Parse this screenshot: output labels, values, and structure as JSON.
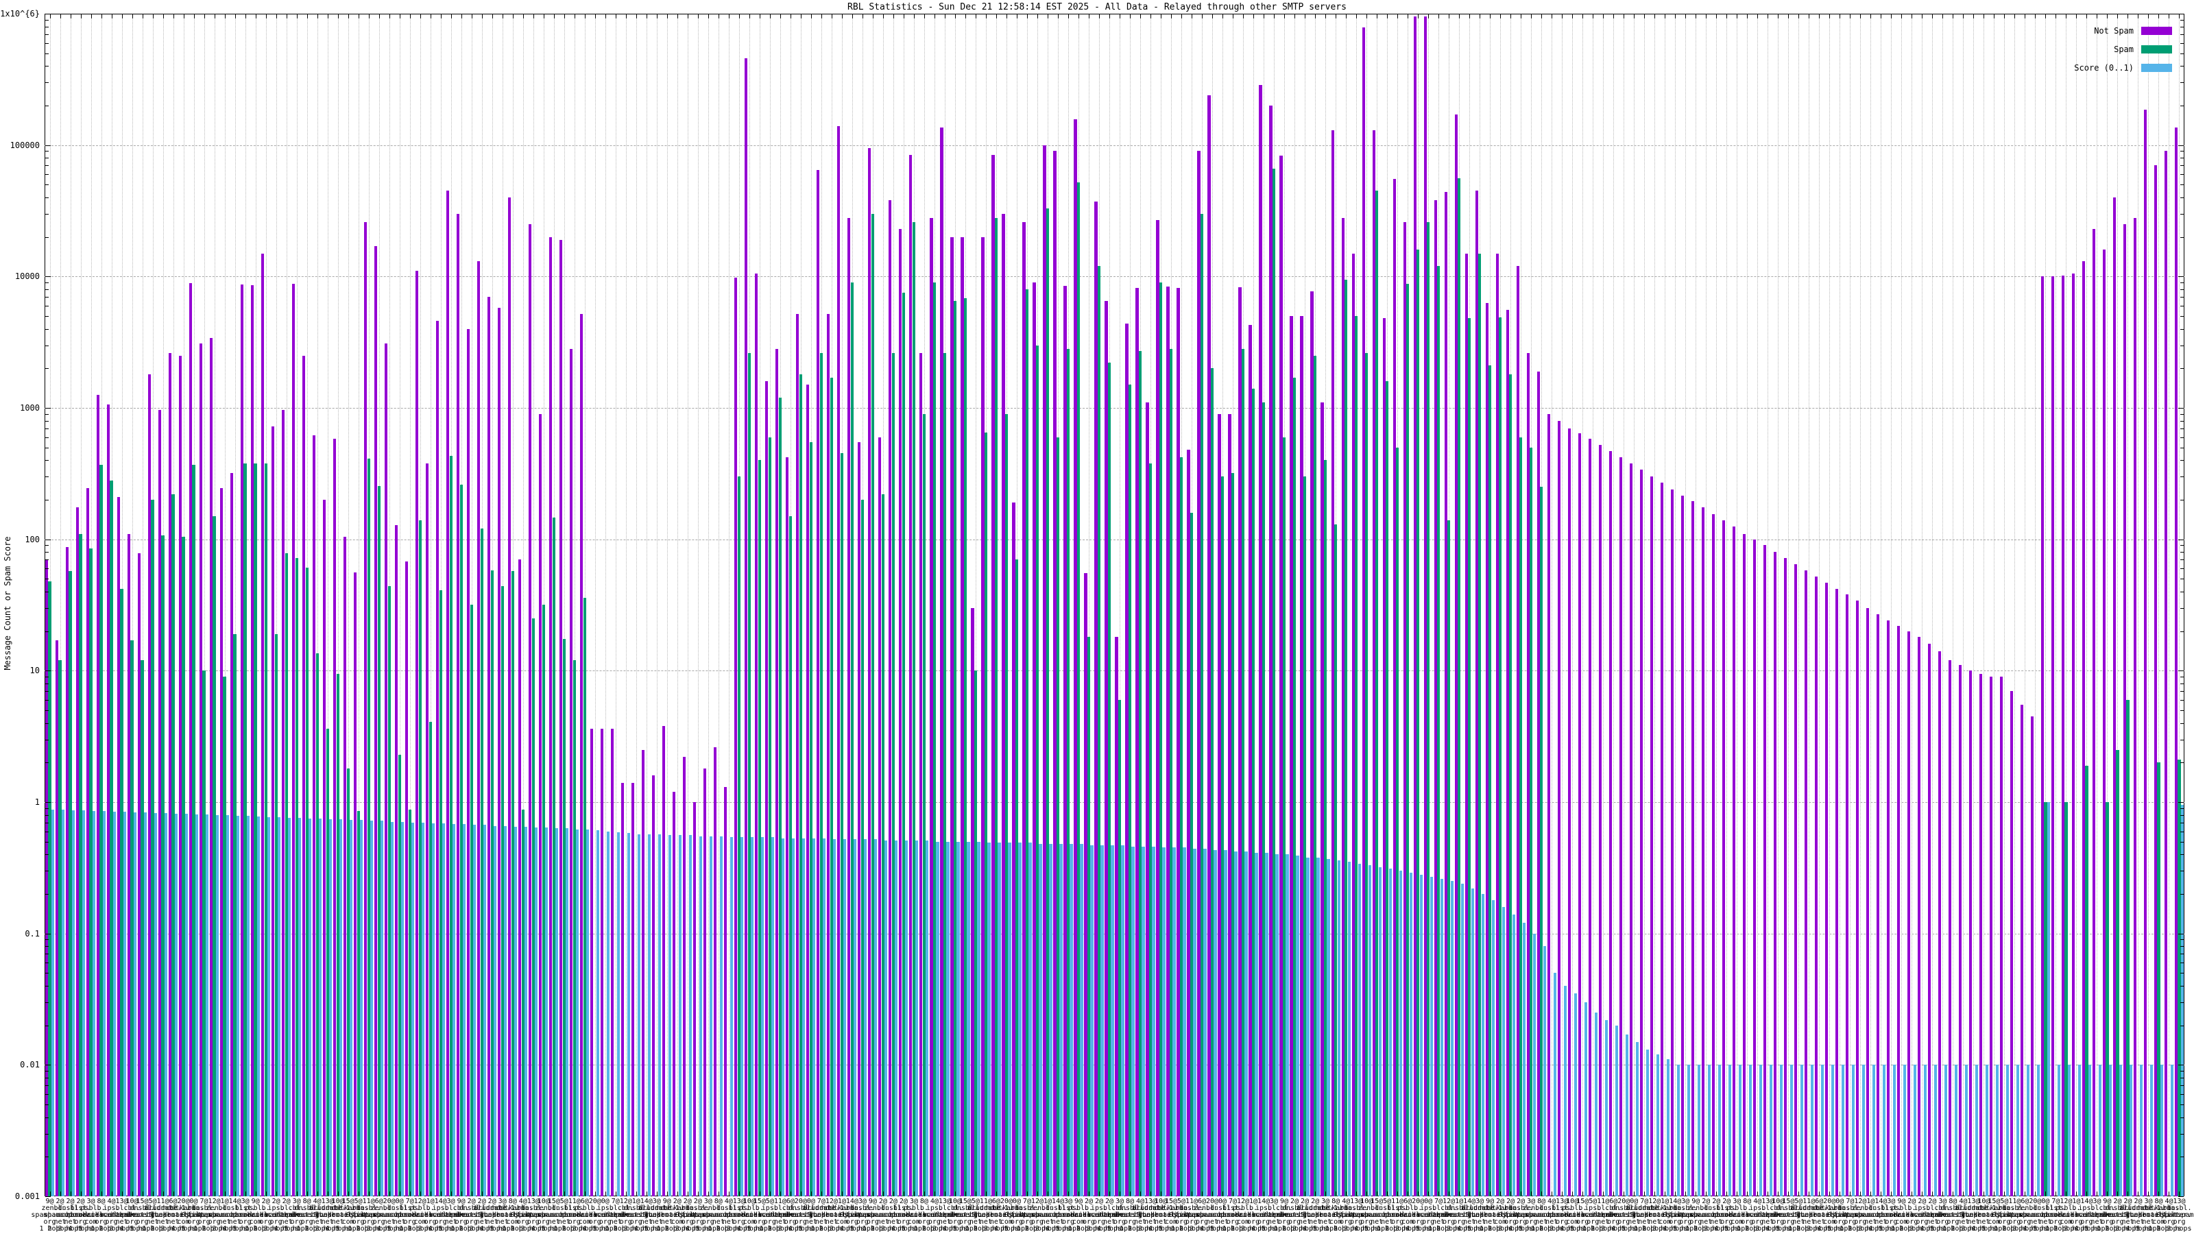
{
  "title": "RBL Statistics - Sun Dec 21 12:58:14 EST 2025 - All Data - Relayed through other SMTP servers",
  "legend": [
    {
      "label": "Not Spam",
      "color": "#9400D3"
    },
    {
      "label": "Spam",
      "color": "#009E73"
    },
    {
      "label": "Score (0..1)",
      "color": "#56B4E9"
    }
  ],
  "axes": {
    "ylabel": "Message Count or Spam Score",
    "ytick_labels": [
      "0.001",
      "0.01",
      "0.1",
      "1",
      "10",
      "100",
      "1000",
      "10000",
      "100000",
      "1x10^{6}"
    ],
    "yscale": "log",
    "ylim": [
      0.001,
      1000000
    ],
    "grid": "on"
  },
  "chart_data": {
    "type": "bar",
    "title": "RBL Statistics - Sun Dec 21 12:58:14 EST 2025 - All Data - Relayed through other SMTP servers",
    "xlabel": "",
    "ylabel": "Message Count or Spam Score",
    "yscale": "log",
    "ylim": [
      0.001,
      1000000
    ],
    "series_names": [
      "Not Spam",
      "Spam",
      "Score (0..1)"
    ],
    "labels": [
      "9@ zen.spamhaus.org 1 hop",
      "2@ bl.spamcop.net 2 hops",
      "2@ dnsbl.sorbs.net 3 hops",
      "2@ list.dnswl.org 4 hops",
      "3@ psbl.surriel.com 5 hops",
      "8@ b.barracudacentral.org 1 hop",
      "4@ ips.backscatterer.org 2 hops",
      "13@ bl.mailspike.net 3 hops",
      "10@ cbl.abuseat.org 4 hops",
      "15@ dnsbl.dronebl.org 5 hops",
      "5@ all.s5h.net 1 hop",
      "11@ truncate.gbudb.net 2 hops",
      "6@ dnsbl-1.uceprotect.net 3 hops",
      "20@ hostkarma.junkemailfilter.com 4 hops",
      "0@ bl.0spam.org 5 hops",
      "7@ dnsbl.justspam.org 1 hop",
      "12@ zen.spamhaus.org 2 hops",
      "1@ bl.spamcop.net 3 hops",
      "14@ dnsbl.sorbs.net 4 hops",
      "3@ list.dnswl.org 5 hops",
      "9@ psbl.surriel.com 1 hop",
      "2@ b.barracudacentral.org 2 hops",
      "2@ ips.backscatterer.org 3 hops",
      "2@ bl.mailspike.net 4 hops",
      "3@ cbl.abuseat.org 5 hops",
      "8@ dnsbl.dronebl.org 1 hop",
      "4@ all.s5h.net 2 hops",
      "13@ truncate.gbudb.net 3 hops",
      "10@ dnsbl-1.uceprotect.net 4 hops",
      "15@ hostkarma.junkemailfilter.com 5 hops",
      "5@ bl.0spam.org 1 hop",
      "11@ dnsbl.justspam.org 2 hops",
      "6@ zen.spamhaus.org 3 hops",
      "20@ bl.spamcop.net 4 hops",
      "0@ dnsbl.sorbs.net 5 hops",
      "7@ list.dnswl.org 1 hop",
      "12@ psbl.surriel.com 2 hops",
      "1@ b.barracudacentral.org 3 hops",
      "14@ ips.backscatterer.org 4 hops",
      "3@ bl.mailspike.net 5 hops",
      "9@ cbl.abuseat.org 1 hop",
      "2@ dnsbl.dronebl.org 2 hops",
      "2@ all.s5h.net 3 hops",
      "2@ truncate.gbudb.net 4 hops",
      "3@ dnsbl-1.uceprotect.net 5 hops",
      "8@ hostkarma.junkemailfilter.com 1 hop",
      "4@ bl.0spam.org 2 hops",
      "13@ dnsbl.justspam.org 3 hops",
      "10@ zen.spamhaus.org 4 hops",
      "15@ bl.spamcop.net 5 hops",
      "5@ dnsbl.sorbs.net 1 hop",
      "11@ list.dnswl.org 2 hops",
      "6@ psbl.surriel.com 3 hops",
      "20@ b.barracudacentral.org 4 hops",
      "0@ ips.backscatterer.org 5 hops",
      "7@ bl.mailspike.net 1 hop",
      "12@ cbl.abuseat.org 2 hops",
      "1@ dnsbl.dronebl.org 3 hops",
      "14@ all.s5h.net 4 hops",
      "3@ truncate.gbudb.net 5 hops",
      "9@ dnsbl-1.uceprotect.net 1 hop",
      "2@ hostkarma.junkemailfilter.com 2 hops",
      "2@ bl.0spam.org 3 hops",
      "2@ dnsbl.justspam.org 4 hops",
      "3@ zen.spamhaus.org 5 hops",
      "8@ bl.spamcop.net 1 hop",
      "4@ dnsbl.sorbs.net 2 hops",
      "13@ list.dnswl.org 3 hops",
      "10@ psbl.surriel.com 4 hops",
      "15@ b.barracudacentral.org 5 hops",
      "5@ ips.backscatterer.org 1 hop",
      "11@ bl.mailspike.net 2 hops",
      "6@ cbl.abuseat.org 3 hops",
      "20@ dnsbl.dronebl.org 4 hops",
      "0@ all.s5h.net 5 hops",
      "7@ truncate.gbudb.net 1 hop",
      "12@ dnsbl-1.uceprotect.net 2 hops",
      "1@ hostkarma.junkemailfilter.com 3 hops",
      "14@ bl.0spam.org 4 hops",
      "3@ dnsbl.justspam.org 5 hops",
      "9@ zen.spamhaus.org 1 hop",
      "2@ bl.spamcop.net 2 hops",
      "2@ dnsbl.sorbs.net 3 hops",
      "2@ list.dnswl.org 4 hops",
      "3@ psbl.surriel.com 5 hops",
      "8@ b.barracudacentral.org 1 hop",
      "4@ ips.backscatterer.org 2 hops",
      "13@ bl.mailspike.net 3 hops",
      "10@ cbl.abuseat.org 4 hops",
      "15@ dnsbl.dronebl.org 5 hops",
      "5@ all.s5h.net 1 hop",
      "11@ truncate.gbudb.net 2 hops",
      "6@ dnsbl-1.uceprotect.net 3 hops",
      "20@ hostkarma.junkemailfilter.com 4 hops",
      "0@ bl.0spam.org 5 hops",
      "7@ dnsbl.justspam.org 1 hop",
      "12@ zen.spamhaus.org 2 hops",
      "1@ bl.spamcop.net 3 hops",
      "14@ dnsbl.sorbs.net 4 hops",
      "3@ list.dnswl.org 5 hops",
      "9@ psbl.surriel.com 1 hop",
      "2@ b.barracudacentral.org 2 hops",
      "2@ ips.backscatterer.org 3 hops",
      "2@ bl.mailspike.net 4 hops",
      "3@ cbl.abuseat.org 5 hops",
      "8@ dnsbl.dronebl.org 1 hop",
      "4@ all.s5h.net 2 hops",
      "13@ truncate.gbudb.net 3 hops",
      "10@ dnsbl-1.uceprotect.net 4 hops",
      "15@ hostkarma.junkemailfilter.com 5 hops",
      "5@ bl.0spam.org 1 hop",
      "11@ dnsbl.justspam.org 2 hops",
      "6@ zen.spamhaus.org 3 hops",
      "20@ bl.spamcop.net 4 hops",
      "0@ dnsbl.sorbs.net 5 hops",
      "7@ list.dnswl.org 1 hop",
      "12@ psbl.surriel.com 2 hops",
      "1@ b.barracudacentral.org 3 hops",
      "14@ ips.backscatterer.org 4 hops",
      "3@ bl.mailspike.net 5 hops",
      "9@ cbl.abuseat.org 1 hop",
      "2@ dnsbl.dronebl.org 2 hops",
      "2@ all.s5h.net 3 hops",
      "2@ truncate.gbudb.net 4 hops",
      "3@ dnsbl-1.uceprotect.net 5 hops",
      "8@ hostkarma.junkemailfilter.com 1 hop",
      "4@ bl.0spam.org 2 hops",
      "13@ dnsbl.justspam.org 3 hops",
      "10@ zen.spamhaus.org 4 hops",
      "15@ bl.spamcop.net 5 hops",
      "5@ dnsbl.sorbs.net 1 hop",
      "11@ list.dnswl.org 2 hops",
      "6@ psbl.surriel.com 3 hops",
      "20@ b.barracudacentral.org 4 hops",
      "0@ ips.backscatterer.org 5 hops",
      "7@ bl.mailspike.net 1 hop",
      "12@ cbl.abuseat.org 2 hops",
      "1@ dnsbl.dronebl.org 3 hops",
      "14@ all.s5h.net 4 hops",
      "3@ truncate.gbudb.net 5 hops",
      "9@ dnsbl-1.uceprotect.net 1 hop",
      "2@ hostkarma.junkemailfilter.com 2 hops",
      "2@ bl.0spam.org 3 hops",
      "2@ dnsbl.justspam.org 4 hops",
      "3@ zen.spamhaus.org 5 hops",
      "8@ bl.spamcop.net 1 hop",
      "4@ dnsbl.sorbs.net 2 hops",
      "13@ list.dnswl.org 3 hops",
      "10@ psbl.surriel.com 4 hops",
      "15@ b.barracudacentral.org 5 hops",
      "5@ ips.backscatterer.org 1 hop",
      "11@ bl.mailspike.net 2 hops",
      "6@ cbl.abuseat.org 3 hops",
      "20@ dnsbl.dronebl.org 4 hops",
      "0@ all.s5h.net 5 hops",
      "7@ truncate.gbudb.net 1 hop",
      "12@ dnsbl-1.uceprotect.net 2 hops",
      "1@ hostkarma.junkemailfilter.com 3 hops",
      "14@ bl.0spam.org 4 hops",
      "3@ dnsbl.justspam.org 5 hops",
      "9@ zen.spamhaus.org 1 hop",
      "2@ bl.spamcop.net 2 hops",
      "2@ dnsbl.sorbs.net 3 hops",
      "2@ list.dnswl.org 4 hops",
      "3@ psbl.surriel.com 5 hops",
      "8@ b.barracudacentral.org 1 hop",
      "4@ ips.backscatterer.org 2 hops",
      "13@ bl.mailspike.net 3 hops",
      "10@ cbl.abuseat.org 4 hops",
      "15@ dnsbl.dronebl.org 5 hops",
      "5@ all.s5h.net 1 hop",
      "11@ truncate.gbudb.net 2 hops",
      "6@ dnsbl-1.uceprotect.net 3 hops",
      "20@ hostkarma.junkemailfilter.com 4 hops",
      "0@ bl.0spam.org 5 hops",
      "7@ dnsbl.justspam.org 1 hop",
      "12@ zen.spamhaus.org 2 hops",
      "1@ bl.spamcop.net 3 hops",
      "14@ dnsbl.sorbs.net 4 hops",
      "3@ list.dnswl.org 5 hops",
      "9@ psbl.surriel.com 1 hop",
      "2@ b.barracudacentral.org 2 hops",
      "2@ ips.backscatterer.org 3 hops",
      "2@ bl.mailspike.net 4 hops",
      "3@ cbl.abuseat.org 5 hops",
      "8@ dnsbl.dronebl.org 1 hop",
      "4@ all.s5h.net 2 hops",
      "13@ truncate.gbudb.net 3 hops",
      "10@ dnsbl-1.uceprotect.net 4 hops",
      "15@ hostkarma.junkemailfilter.com 5 hops",
      "5@ bl.0spam.org 1 hop",
      "11@ dnsbl.justspam.org 2 hops",
      "6@ zen.spamhaus.org 3 hops",
      "20@ bl.spamcop.net 4 hops",
      "0@ dnsbl.sorbs.net 5 hops",
      "7@ list.dnswl.org 1 hop",
      "12@ psbl.surriel.com 2 hops",
      "1@ b.barracudacentral.org 3 hops",
      "14@ ips.backscatterer.org 4 hops",
      "3@ bl.mailspike.net 5 hops",
      "9@ cbl.abuseat.org 1 hop",
      "2@ dnsbl.dronebl.org 2 hops",
      "2@ all.s5h.net 3 hops",
      "2@ truncate.gbudb.net 4 hops",
      "3@ dnsbl-1.uceprotect.net 5 hops",
      "8@ hostkarma.junkemailfilter.com 1 hop",
      "4@ bl.0spam.org 2 hops",
      "13@ dnsbl.justspam.org 3 hops"
    ],
    "not_spam": [
      70,
      17,
      87,
      175,
      245,
      1260,
      1060,
      210,
      110,
      78,
      1800,
      970,
      2600,
      2500,
      8900,
      3100,
      3400,
      245,
      320,
      8700,
      8600,
      15000,
      720,
      970,
      8800,
      2500,
      620,
      200,
      580,
      104,
      56,
      26000,
      17000,
      3100,
      128,
      68,
      11000,
      380,
      4600,
      45000,
      30000,
      4000,
      13000,
      7000,
      5800,
      40000,
      70,
      25000,
      900,
      20000,
      19000,
      2800,
      5200,
      3.6,
      3.6,
      3.6,
      1.4,
      1.4,
      2.5,
      1.6,
      3.8,
      1.2,
      2.2,
      1.0,
      1.8,
      2.6,
      1.3,
      9800,
      460000,
      10500,
      1600,
      2800,
      420,
      5200,
      1500,
      65000,
      5200,
      140000,
      28000,
      550,
      95000,
      600,
      38000,
      23000,
      84000,
      2600,
      28000,
      136000,
      20000,
      20000,
      30,
      20000,
      84000,
      30000,
      190,
      26000,
      9000,
      100000,
      90000,
      8500,
      158000,
      55,
      37000,
      6500,
      18,
      4400,
      8200,
      1100,
      27000,
      8400,
      8200,
      480,
      91000,
      240000,
      900,
      900,
      8300,
      4300,
      287000,
      200000,
      83000,
      5000,
      5000,
      7700,
      1100,
      129000,
      28000,
      15000,
      790000,
      130000,
      4800,
      55000,
      26000,
      950000,
      950000,
      38000,
      44000,
      172000,
      15000,
      45000,
      6300,
      15000,
      5600,
      12000,
      2600,
      1900,
      900,
      800,
      700,
      640,
      580,
      520,
      470,
      420,
      380,
      340,
      300,
      270,
      240,
      215,
      195,
      175,
      155,
      140,
      125,
      110,
      100,
      90,
      80,
      72,
      65,
      58,
      52,
      47,
      42,
      38,
      34,
      30,
      27,
      24,
      22,
      20,
      18,
      16,
      14,
      12,
      11,
      10,
      9.5,
      9,
      9,
      7,
      5.5,
      4.5,
      10000,
      10000,
      10200,
      10500,
      13000,
      23000,
      16000,
      40000,
      25000,
      28000,
      186000,
      70000,
      90000,
      136000
    ],
    "spam": [
      48,
      12,
      57,
      110,
      85,
      370,
      280,
      42,
      17,
      12,
      200,
      107,
      220,
      105,
      370,
      10,
      150,
      9,
      19,
      380,
      380,
      380,
      19,
      78,
      72,
      61,
      13.5,
      3.6,
      9.5,
      1.8,
      0.86,
      410,
      255,
      44,
      2.3,
      0.88,
      140,
      4.1,
      41,
      430,
      260,
      32,
      120,
      58,
      44,
      57,
      0.88,
      25,
      32,
      147,
      17.5,
      12,
      36,
      null,
      null,
      null,
      null,
      null,
      null,
      null,
      null,
      null,
      null,
      null,
      null,
      null,
      null,
      300,
      2600,
      400,
      600,
      1200,
      150,
      1800,
      550,
      2600,
      1700,
      450,
      9000,
      200,
      30000,
      220,
      2600,
      7500,
      26000,
      900,
      9000,
      2600,
      6500,
      6800,
      10,
      650,
      28000,
      900,
      70,
      8000,
      3000,
      33000,
      600,
      2800,
      52000,
      18,
      12000,
      2200,
      6,
      1500,
      2700,
      380,
      9000,
      2800,
      420,
      160,
      30000,
      2000,
      300,
      320,
      2800,
      1400,
      1100,
      66000,
      600,
      1700,
      300,
      2500,
      400,
      130,
      9500,
      5000,
      2600,
      45000,
      1600,
      500,
      8800,
      16000,
      26000,
      12000,
      140,
      56000,
      4800,
      15000,
      2100,
      4900,
      1800,
      600,
      500,
      250,
      null,
      null,
      null,
      null,
      null,
      null,
      null,
      null,
      null,
      null,
      null,
      null,
      null,
      null,
      null,
      null,
      null,
      null,
      null,
      null,
      null,
      null,
      null,
      null,
      null,
      null,
      null,
      null,
      null,
      null,
      null,
      null,
      null,
      null,
      null,
      null,
      null,
      null,
      null,
      null,
      null,
      null,
      null,
      null,
      null,
      null,
      null,
      null,
      1,
      null,
      1,
      null,
      1.9,
      null,
      1,
      2.5,
      6,
      null,
      null,
      2,
      null,
      2.1
    ],
    "score": [
      0.88,
      0.88,
      0.87,
      0.87,
      0.86,
      0.86,
      0.85,
      0.85,
      0.84,
      0.84,
      0.83,
      0.83,
      0.82,
      0.82,
      0.81,
      0.81,
      0.8,
      0.8,
      0.79,
      0.79,
      0.78,
      0.77,
      0.77,
      0.76,
      0.76,
      0.75,
      0.75,
      0.74,
      0.74,
      0.73,
      0.73,
      0.72,
      0.72,
      0.71,
      0.71,
      0.7,
      0.7,
      0.69,
      0.69,
      0.68,
      0.68,
      0.67,
      0.67,
      0.66,
      0.66,
      0.65,
      0.65,
      0.64,
      0.64,
      0.63,
      0.63,
      0.62,
      0.62,
      0.61,
      0.6,
      0.59,
      0.58,
      0.57,
      0.57,
      0.57,
      0.56,
      0.56,
      0.56,
      0.55,
      0.55,
      0.55,
      0.54,
      0.54,
      0.54,
      0.54,
      0.54,
      0.53,
      0.53,
      0.53,
      0.53,
      0.53,
      0.52,
      0.52,
      0.52,
      0.52,
      0.52,
      0.51,
      0.51,
      0.51,
      0.51,
      0.51,
      0.5,
      0.5,
      0.5,
      0.5,
      0.5,
      0.49,
      0.49,
      0.49,
      0.49,
      0.49,
      0.48,
      0.48,
      0.48,
      0.48,
      0.48,
      0.47,
      0.47,
      0.47,
      0.47,
      0.46,
      0.46,
      0.46,
      0.45,
      0.45,
      0.45,
      0.44,
      0.44,
      0.43,
      0.43,
      0.42,
      0.42,
      0.41,
      0.41,
      0.4,
      0.4,
      0.39,
      0.38,
      0.38,
      0.37,
      0.36,
      0.35,
      0.34,
      0.33,
      0.32,
      0.31,
      0.3,
      0.29,
      0.28,
      0.27,
      0.26,
      0.25,
      0.24,
      0.22,
      0.2,
      0.18,
      0.16,
      0.14,
      0.12,
      0.1,
      0.08,
      0.05,
      0.04,
      0.035,
      0.03,
      0.025,
      0.022,
      0.02,
      0.017,
      0.015,
      0.013,
      0.012,
      0.011,
      0.01,
      0.01,
      0.01,
      0.01,
      0.01,
      0.01,
      0.01,
      0.01,
      0.01,
      0.01,
      0.01,
      0.01,
      0.01,
      0.01,
      0.01,
      0.01,
      0.01,
      0.01,
      0.01,
      0.01,
      0.01,
      0.01,
      0.01,
      0.01,
      0.01,
      0.01,
      0.01,
      0.01,
      0.01,
      0.01,
      0.01,
      0.01,
      0.01,
      0.01,
      0.01,
      0.01,
      1.0,
      0.01,
      0.01,
      0.01,
      0.01,
      0.01,
      0.01,
      0.01,
      0.01,
      0.01,
      0.01,
      0.01,
      0.01,
      0.95
    ]
  }
}
